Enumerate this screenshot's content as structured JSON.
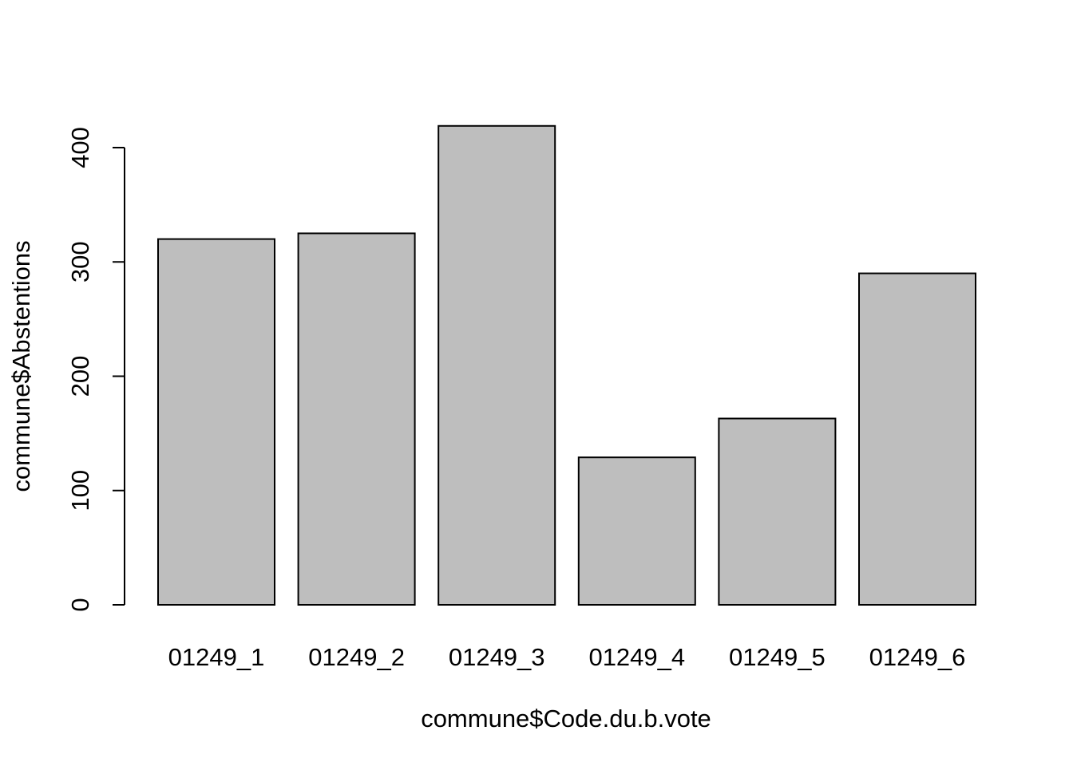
{
  "chart_data": {
    "type": "bar",
    "categories": [
      "01249_1",
      "01249_2",
      "01249_3",
      "01249_4",
      "01249_5",
      "01249_6"
    ],
    "values": [
      320,
      325,
      419,
      129,
      163,
      290
    ],
    "title": "",
    "xlabel": "commune$Code.du.b.vote",
    "ylabel": "commune$Abstentions",
    "ylim": [
      0,
      400
    ],
    "yticks": [
      0,
      100,
      200,
      300,
      400
    ],
    "bar_color": "#bebebe",
    "border_color": "#000000",
    "grid": false,
    "legend": "none"
  }
}
